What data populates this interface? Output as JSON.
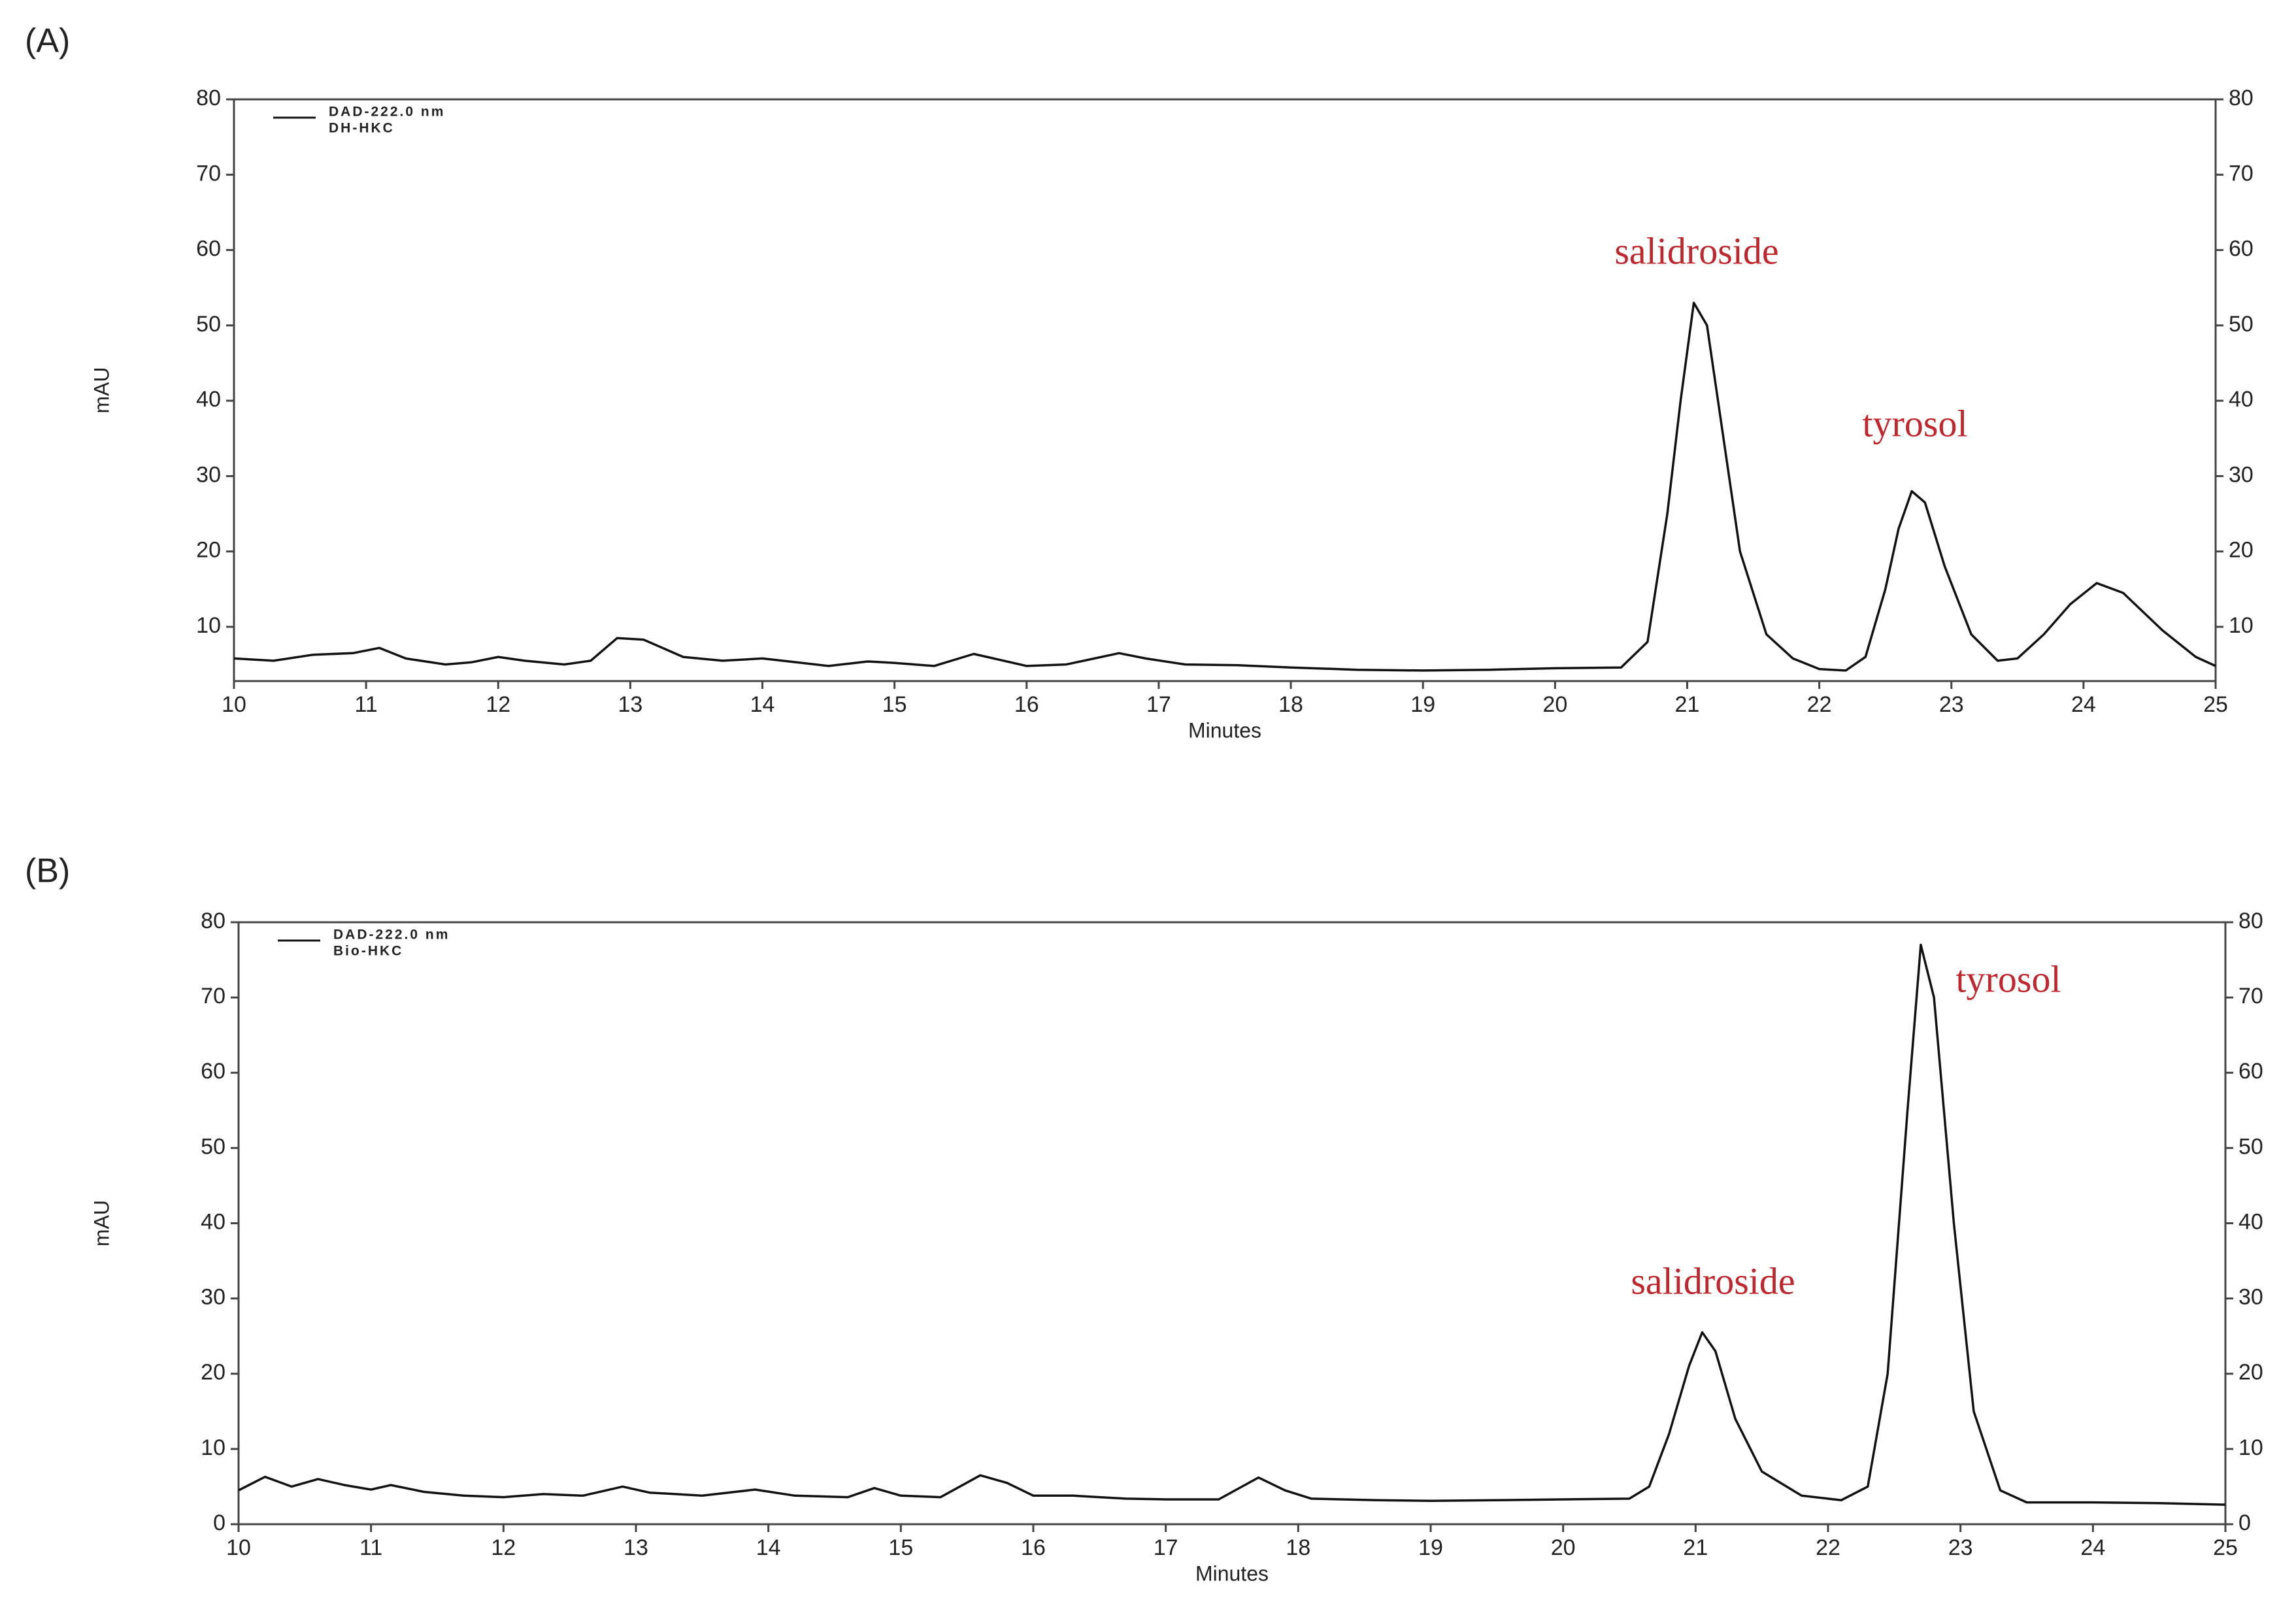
{
  "chart_data": [
    {
      "type": "line",
      "panel_label": "(A)",
      "ylabel": "mAU",
      "xlabel": "Minutes",
      "xlim": [
        10,
        25
      ],
      "xticks": [
        10,
        11,
        12,
        13,
        14,
        15,
        16,
        17,
        18,
        19,
        20,
        21,
        22,
        23,
        24,
        25
      ],
      "ylim": [
        2.8,
        80
      ],
      "yticks": [
        10,
        20,
        30,
        40,
        50,
        60,
        70,
        80
      ],
      "grid": false,
      "x": [
        10,
        10.3,
        10.6,
        10.9,
        11.1,
        11.3,
        11.6,
        11.8,
        12,
        12.2,
        12.5,
        12.7,
        12.9,
        13.1,
        13.4,
        13.7,
        14,
        14.3,
        14.5,
        14.8,
        15,
        15.3,
        15.6,
        15.8,
        16,
        16.3,
        16.7,
        16.9,
        17.2,
        17.6,
        18,
        18.5,
        19,
        19.5,
        20,
        20.5,
        20.7,
        20.85,
        20.95,
        21.05,
        21.15,
        21.25,
        21.4,
        21.6,
        21.8,
        22,
        22.2,
        22.35,
        22.5,
        22.6,
        22.7,
        22.8,
        22.95,
        23.15,
        23.35,
        23.5,
        23.7,
        23.9,
        24.1,
        24.3,
        24.6,
        24.85,
        25
      ],
      "series": [
        {
          "name": "DAD-222.0 nm",
          "sample": "DH-HKC",
          "color": "#111111",
          "values": [
            5.8,
            5.5,
            6.3,
            6.5,
            7.2,
            5.8,
            5,
            5.3,
            6,
            5.5,
            5,
            5.5,
            8.5,
            8.3,
            6,
            5.5,
            5.8,
            5.2,
            4.8,
            5.4,
            5.2,
            4.8,
            6.4,
            5.6,
            4.8,
            5,
            6.5,
            5.8,
            5,
            4.9,
            4.6,
            4.3,
            4.2,
            4.3,
            4.5,
            4.6,
            8,
            25,
            40,
            53,
            50,
            38,
            20,
            9,
            5.8,
            4.4,
            4.2,
            6,
            15,
            23,
            28,
            26.5,
            18,
            9,
            5.5,
            5.8,
            9,
            13,
            15.8,
            14.5,
            9.5,
            6,
            4.8
          ]
        }
      ],
      "annotations": [
        "salidroside",
        "tyrosol"
      ],
      "annotation_color": "#c0272d"
    },
    {
      "type": "line",
      "panel_label": "(B)",
      "ylabel": "mAU",
      "xlabel": "Minutes",
      "xlim": [
        10,
        25
      ],
      "xticks": [
        10,
        11,
        12,
        13,
        14,
        15,
        16,
        17,
        18,
        19,
        20,
        21,
        22,
        23,
        24,
        25
      ],
      "ylim": [
        0,
        80
      ],
      "yticks": [
        0,
        10,
        20,
        30,
        40,
        50,
        60,
        70,
        80
      ],
      "grid": false,
      "x": [
        10,
        10.2,
        10.4,
        10.6,
        10.8,
        11,
        11.15,
        11.4,
        11.7,
        12,
        12.3,
        12.6,
        12.9,
        13.1,
        13.5,
        13.9,
        14.2,
        14.6,
        14.8,
        15,
        15.3,
        15.6,
        15.8,
        16,
        16.3,
        16.7,
        17,
        17.4,
        17.7,
        17.9,
        18.1,
        18.6,
        19,
        19.5,
        20,
        20.5,
        20.65,
        20.8,
        20.95,
        21.05,
        21.15,
        21.3,
        21.5,
        21.8,
        22.1,
        22.3,
        22.45,
        22.6,
        22.7,
        22.8,
        22.95,
        23.1,
        23.3,
        23.5,
        24,
        24.5,
        25
      ],
      "series": [
        {
          "name": "DAD-222.0 nm",
          "sample": "Bio-HKC",
          "color": "#111111",
          "values": [
            4.5,
            6.3,
            5,
            6,
            5.2,
            4.6,
            5.2,
            4.3,
            3.8,
            3.6,
            4,
            3.8,
            5,
            4.2,
            3.8,
            4.6,
            3.8,
            3.6,
            4.8,
            3.8,
            3.6,
            6.5,
            5.5,
            3.8,
            3.8,
            3.4,
            3.3,
            3.3,
            6.2,
            4.5,
            3.4,
            3.2,
            3.1,
            3.2,
            3.3,
            3.4,
            5,
            12,
            21,
            25.5,
            23,
            14,
            7,
            3.8,
            3.2,
            5,
            20,
            55,
            77,
            70,
            40,
            15,
            4.5,
            2.9,
            2.9,
            2.8,
            2.6
          ]
        }
      ],
      "annotations": [
        "salidroside",
        "tyrosol"
      ],
      "annotation_color": "#c0272d"
    }
  ]
}
